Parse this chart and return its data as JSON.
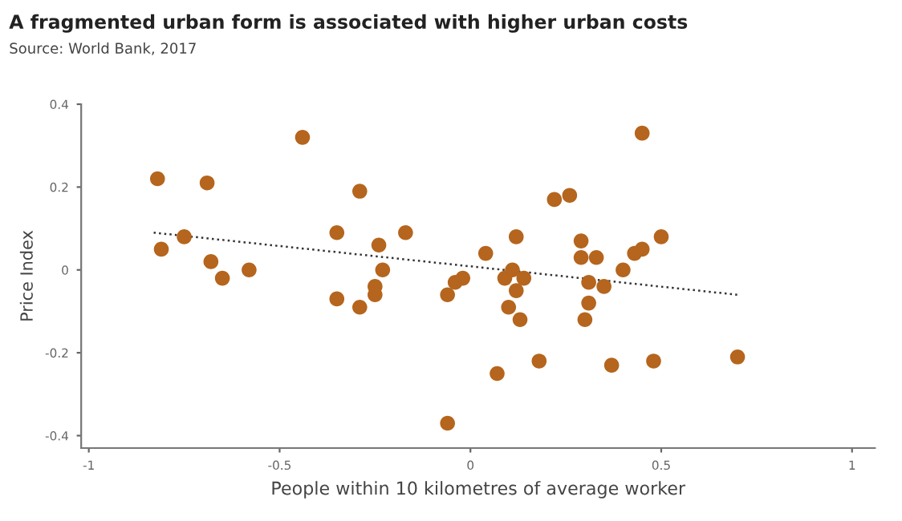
{
  "chart_data": {
    "type": "scatter",
    "title": "A fragmented urban form is associated with higher urban costs",
    "annotations": [
      "Source: World Bank, 2017"
    ],
    "xlabel": "People within 10 kilometres of average worker",
    "ylabel": "Price Index",
    "xlim": [
      -1.02,
      1.06
    ],
    "ylim": [
      -0.43,
      0.4
    ],
    "xticks": [
      -1,
      -0.5,
      0,
      0.5,
      1
    ],
    "yticks": [
      -0.4,
      -0.2,
      0,
      0.2,
      0.4
    ],
    "grid": false,
    "series": [
      {
        "marker": "circle",
        "color": "#b5651d",
        "x": [
          -0.82,
          -0.81,
          -0.75,
          -0.69,
          -0.68,
          -0.65,
          -0.58,
          -0.44,
          -0.35,
          -0.35,
          -0.29,
          -0.29,
          -0.24,
          -0.25,
          -0.25,
          -0.23,
          -0.17,
          -0.06,
          -0.06,
          -0.04,
          -0.02,
          0.04,
          0.07,
          0.09,
          0.1,
          0.11,
          0.12,
          0.12,
          0.13,
          0.14,
          0.18,
          0.22,
          0.26,
          0.29,
          0.29,
          0.31,
          0.31,
          0.3,
          0.33,
          0.35,
          0.37,
          0.4,
          0.43,
          0.45,
          0.45,
          0.48,
          0.5,
          0.7
        ],
        "values": [
          0.22,
          0.05,
          0.08,
          0.21,
          0.02,
          -0.02,
          0.0,
          0.32,
          0.09,
          -0.07,
          0.19,
          -0.09,
          0.06,
          -0.04,
          -0.06,
          0.0,
          0.09,
          -0.37,
          -0.06,
          -0.03,
          -0.02,
          0.04,
          -0.25,
          -0.02,
          -0.09,
          0.0,
          0.08,
          -0.05,
          -0.12,
          -0.02,
          -0.22,
          0.17,
          0.18,
          0.07,
          0.03,
          -0.03,
          -0.08,
          -0.12,
          0.03,
          -0.04,
          -0.23,
          0.0,
          0.04,
          0.05,
          0.33,
          -0.22,
          0.08,
          -0.21
        ]
      },
      {
        "type": "line",
        "color": "#333333",
        "line_style": "dotted",
        "x": [
          -0.83,
          0.7
        ],
        "values": [
          0.09,
          -0.06
        ]
      }
    ]
  }
}
